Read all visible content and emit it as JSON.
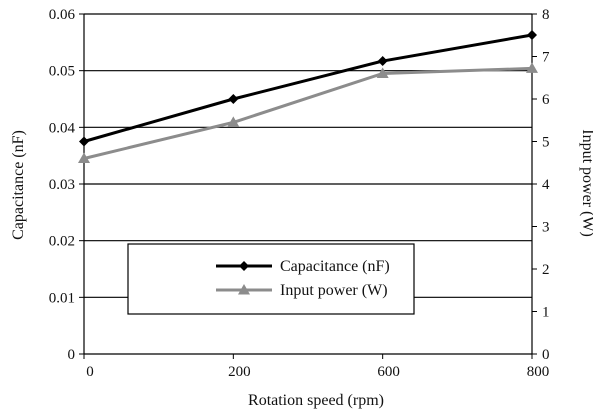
{
  "chart_data": {
    "type": "line",
    "title": "",
    "x_categories": [
      "0",
      "200",
      "600",
      "800"
    ],
    "xlabel": "Rotation speed (rpm)",
    "ylabel_left": "Capacitance (nF)",
    "ylabel_right": "Input power (W)",
    "ylim_left": [
      0,
      0.06
    ],
    "ylim_right": [
      0,
      8
    ],
    "yticks_left": [
      "0",
      "0.01",
      "0.02",
      "0.03",
      "0.04",
      "0.05",
      "0.06"
    ],
    "yticks_right": [
      "0",
      "1",
      "2",
      "3",
      "4",
      "5",
      "6",
      "7",
      "8"
    ],
    "grid": "horizontal",
    "legend_position": "center-bottom",
    "series": [
      {
        "name": "Capacitance (nF)",
        "axis": "left",
        "marker": "diamond",
        "color": "#000000",
        "values": [
          0.0375,
          0.045,
          0.0517,
          0.0563
        ]
      },
      {
        "name": "Input power (W)",
        "axis": "right",
        "marker": "triangle",
        "color": "#8c8c8c",
        "values": [
          4.6,
          5.45,
          6.6,
          6.72
        ]
      }
    ]
  }
}
